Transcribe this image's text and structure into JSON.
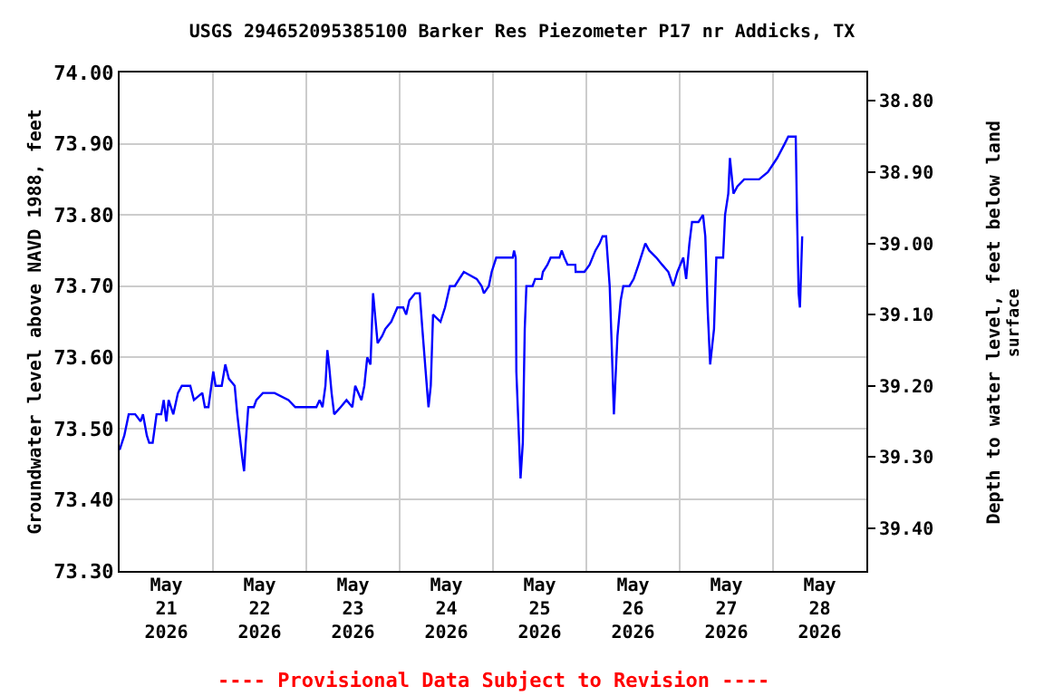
{
  "chart_data": {
    "type": "line",
    "title": "USGS 294652095385100 Barker Res Piezometer P17 nr Addicks, TX",
    "ylabel": "Groundwater level above NAVD 1988, feet",
    "y2label": "Depth to water level, feet below land\nsurface",
    "annotations": [
      "---- Provisional Data Subject to Revision ----"
    ],
    "xlim": [
      "2026-05-21",
      "2026-05-29"
    ],
    "xticks": [
      {
        "value": "2026-05-21",
        "label": null
      },
      {
        "value": "2026-05-21T12:00",
        "label": "May\n21\n2026"
      },
      {
        "value": "2026-05-22",
        "label": null
      },
      {
        "value": "2026-05-22T12:00",
        "label": "May\n22\n2026"
      },
      {
        "value": "2026-05-23",
        "label": null
      },
      {
        "value": "2026-05-23T12:00",
        "label": "May\n23\n2026"
      },
      {
        "value": "2026-05-24",
        "label": null
      },
      {
        "value": "2026-05-24T12:00",
        "label": "May\n24\n2026"
      },
      {
        "value": "2026-05-25",
        "label": null
      },
      {
        "value": "2026-05-25T12:00",
        "label": "May\n25\n2026"
      },
      {
        "value": "2026-05-26",
        "label": null
      },
      {
        "value": "2026-05-26T12:00",
        "label": "May\n26\n2026"
      },
      {
        "value": "2026-05-27",
        "label": null
      },
      {
        "value": "2026-05-27T12:00",
        "label": "May\n27\n2026"
      },
      {
        "value": "2026-05-28",
        "label": null
      },
      {
        "value": "2026-05-28T12:00",
        "label": "May\n28\n2026"
      },
      {
        "value": "2026-05-29",
        "label": null
      }
    ],
    "ylim": [
      73.3,
      74.0
    ],
    "yticks": [
      {
        "value": 73.3,
        "label": "73.30"
      },
      {
        "value": 73.4,
        "label": "73.40"
      },
      {
        "value": 73.5,
        "label": "73.50"
      },
      {
        "value": 73.6,
        "label": "73.60"
      },
      {
        "value": 73.7,
        "label": "73.70"
      },
      {
        "value": 73.8,
        "label": "73.80"
      },
      {
        "value": 73.9,
        "label": "73.90"
      },
      {
        "value": 74.0,
        "label": "74.00"
      }
    ],
    "y2lim": [
      39.46,
      38.76
    ],
    "y2ticks": [
      {
        "value": 38.8,
        "label": "38.80"
      },
      {
        "value": 38.9,
        "label": "38.90"
      },
      {
        "value": 39.0,
        "label": "39.00"
      },
      {
        "value": 39.1,
        "label": "39.10"
      },
      {
        "value": 39.2,
        "label": "39.20"
      },
      {
        "value": 39.3,
        "label": "39.30"
      },
      {
        "value": 39.4,
        "label": "39.40"
      }
    ],
    "grid": true,
    "marker": "none",
    "line_style": "solid",
    "series": [
      {
        "color": "#0000ff",
        "x": [
          "2026-05-21T00:00",
          "2026-05-21T01:12",
          "2026-05-21T02:20",
          "2026-05-21T04:00",
          "2026-05-21T05:24",
          "2026-05-21T06:00",
          "2026-05-21T07:00",
          "2026-05-21T07:36",
          "2026-05-21T08:30",
          "2026-05-21T09:30",
          "2026-05-21T10:42",
          "2026-05-21T11:20",
          "2026-05-21T12:00",
          "2026-05-21T12:36",
          "2026-05-21T13:48",
          "2026-05-21T15:00",
          "2026-05-21T16:00",
          "2026-05-21T18:10",
          "2026-05-21T19:06",
          "2026-05-21T21:15",
          "2026-05-21T21:55",
          "2026-05-21T22:50",
          "2026-05-22T00:05",
          "2026-05-22T00:40",
          "2026-05-22T02:15",
          "2026-05-22T03:10",
          "2026-05-22T04:05",
          "2026-05-22T05:35",
          "2026-05-22T06:15",
          "2026-05-22T07:30",
          "2026-05-22T08:00",
          "2026-05-22T08:25",
          "2026-05-22T09:05",
          "2026-05-22T10:30",
          "2026-05-22T11:10",
          "2026-05-22T12:50",
          "2026-05-22T14:50",
          "2026-05-22T15:50",
          "2026-05-22T19:25",
          "2026-05-22T21:10",
          "2026-05-23T02:35",
          "2026-05-23T03:25",
          "2026-05-23T04:10",
          "2026-05-23T04:55",
          "2026-05-23T05:25",
          "2026-05-23T05:50",
          "2026-05-23T06:30",
          "2026-05-23T07:10",
          "2026-05-23T08:50",
          "2026-05-23T10:20",
          "2026-05-23T11:50",
          "2026-05-23T12:35",
          "2026-05-23T14:10",
          "2026-05-23T14:55",
          "2026-05-23T15:40",
          "2026-05-23T16:30",
          "2026-05-23T17:10",
          "2026-05-23T17:40",
          "2026-05-23T18:20",
          "2026-05-23T19:30",
          "2026-05-23T20:20",
          "2026-05-23T21:50",
          "2026-05-23T23:25",
          "2026-05-24T00:55",
          "2026-05-24T01:40",
          "2026-05-24T02:30",
          "2026-05-24T04:00",
          "2026-05-24T05:10",
          "2026-05-24T05:50",
          "2026-05-24T06:50",
          "2026-05-24T07:25",
          "2026-05-24T08:00",
          "2026-05-24T08:35",
          "2026-05-24T10:30",
          "2026-05-24T11:40",
          "2026-05-24T12:55",
          "2026-05-24T14:10",
          "2026-05-24T16:30",
          "2026-05-24T19:50",
          "2026-05-24T21:05",
          "2026-05-24T21:40",
          "2026-05-24T22:55",
          "2026-05-24T23:40",
          "2026-05-25T00:50",
          "2026-05-25T05:05",
          "2026-05-25T05:25",
          "2026-05-25T05:50",
          "2026-05-25T06:00",
          "2026-05-25T06:35",
          "2026-05-25T07:05",
          "2026-05-25T07:40",
          "2026-05-25T08:10",
          "2026-05-25T08:35",
          "2026-05-25T10:10",
          "2026-05-25T10:50",
          "2026-05-25T12:30",
          "2026-05-25T12:50",
          "2026-05-25T14:00",
          "2026-05-25T14:50",
          "2026-05-25T17:05",
          "2026-05-25T17:40",
          "2026-05-25T18:20",
          "2026-05-25T19:10",
          "2026-05-25T21:10",
          "2026-05-25T21:15",
          "2026-05-25T23:30",
          "2026-05-26T00:50",
          "2026-05-26T02:20",
          "2026-05-26T03:25",
          "2026-05-26T04:10",
          "2026-05-26T05:05",
          "2026-05-26T06:00",
          "2026-05-26T06:30",
          "2026-05-26T07:05",
          "2026-05-26T07:30",
          "2026-05-26T08:00",
          "2026-05-26T08:50",
          "2026-05-26T09:30",
          "2026-05-26T11:05",
          "2026-05-26T12:10",
          "2026-05-26T13:25",
          "2026-05-26T14:35",
          "2026-05-26T15:10",
          "2026-05-26T16:10",
          "2026-05-26T18:00",
          "2026-05-26T19:30",
          "2026-05-26T21:05",
          "2026-05-26T22:20",
          "2026-05-26T23:25",
          "2026-05-27T00:55",
          "2026-05-27T01:40",
          "2026-05-27T02:30",
          "2026-05-27T03:10",
          "2026-05-27T04:50",
          "2026-05-27T06:00",
          "2026-05-27T06:35",
          "2026-05-27T07:10",
          "2026-05-27T07:50",
          "2026-05-27T08:50",
          "2026-05-27T09:25",
          "2026-05-27T11:10",
          "2026-05-27T11:40",
          "2026-05-27T12:30",
          "2026-05-27T12:55",
          "2026-05-27T13:50",
          "2026-05-27T14:50",
          "2026-05-27T16:35",
          "2026-05-27T18:00",
          "2026-05-27T20:25",
          "2026-05-27T22:40",
          "2026-05-28T01:05",
          "2026-05-28T03:00",
          "2026-05-28T03:55",
          "2026-05-28T05:50",
          "2026-05-28T06:10",
          "2026-05-28T06:35",
          "2026-05-28T06:55",
          "2026-05-28T07:30"
        ],
        "values": [
          73.47,
          73.49,
          73.52,
          73.52,
          73.51,
          73.52,
          73.49,
          73.48,
          73.48,
          73.52,
          73.52,
          73.54,
          73.51,
          73.54,
          73.52,
          73.55,
          73.56,
          73.56,
          73.54,
          73.55,
          73.53,
          73.53,
          73.58,
          73.56,
          73.56,
          73.59,
          73.57,
          73.56,
          73.52,
          73.46,
          73.44,
          73.48,
          73.53,
          73.53,
          73.54,
          73.55,
          73.55,
          73.55,
          73.54,
          73.53,
          73.53,
          73.54,
          73.53,
          73.56,
          73.61,
          73.59,
          73.55,
          73.52,
          73.53,
          73.54,
          73.53,
          73.56,
          73.54,
          73.56,
          73.6,
          73.59,
          73.69,
          73.66,
          73.62,
          73.63,
          73.64,
          73.65,
          73.67,
          73.67,
          73.66,
          73.68,
          73.69,
          73.69,
          73.64,
          73.57,
          73.53,
          73.56,
          73.66,
          73.65,
          73.67,
          73.7,
          73.7,
          73.72,
          73.71,
          73.7,
          73.69,
          73.7,
          73.72,
          73.74,
          73.74,
          73.75,
          73.74,
          73.58,
          73.5,
          73.43,
          73.48,
          73.64,
          73.7,
          73.7,
          73.71,
          73.71,
          73.72,
          73.73,
          73.74,
          73.74,
          73.75,
          73.74,
          73.73,
          73.73,
          73.72,
          73.72,
          73.73,
          73.75,
          73.76,
          73.77,
          73.77,
          73.7,
          73.62,
          73.52,
          73.57,
          73.63,
          73.68,
          73.7,
          73.7,
          73.71,
          73.73,
          73.75,
          73.76,
          73.75,
          73.74,
          73.73,
          73.72,
          73.7,
          73.72,
          73.74,
          73.71,
          73.76,
          73.79,
          73.79,
          73.8,
          73.77,
          73.67,
          73.59,
          73.64,
          73.74,
          73.74,
          73.8,
          73.83,
          73.88,
          73.83,
          73.84,
          73.85,
          73.85,
          73.85,
          73.86,
          73.88,
          73.9,
          73.91,
          73.91,
          73.8,
          73.69,
          73.67,
          73.77
        ]
      }
    ]
  }
}
